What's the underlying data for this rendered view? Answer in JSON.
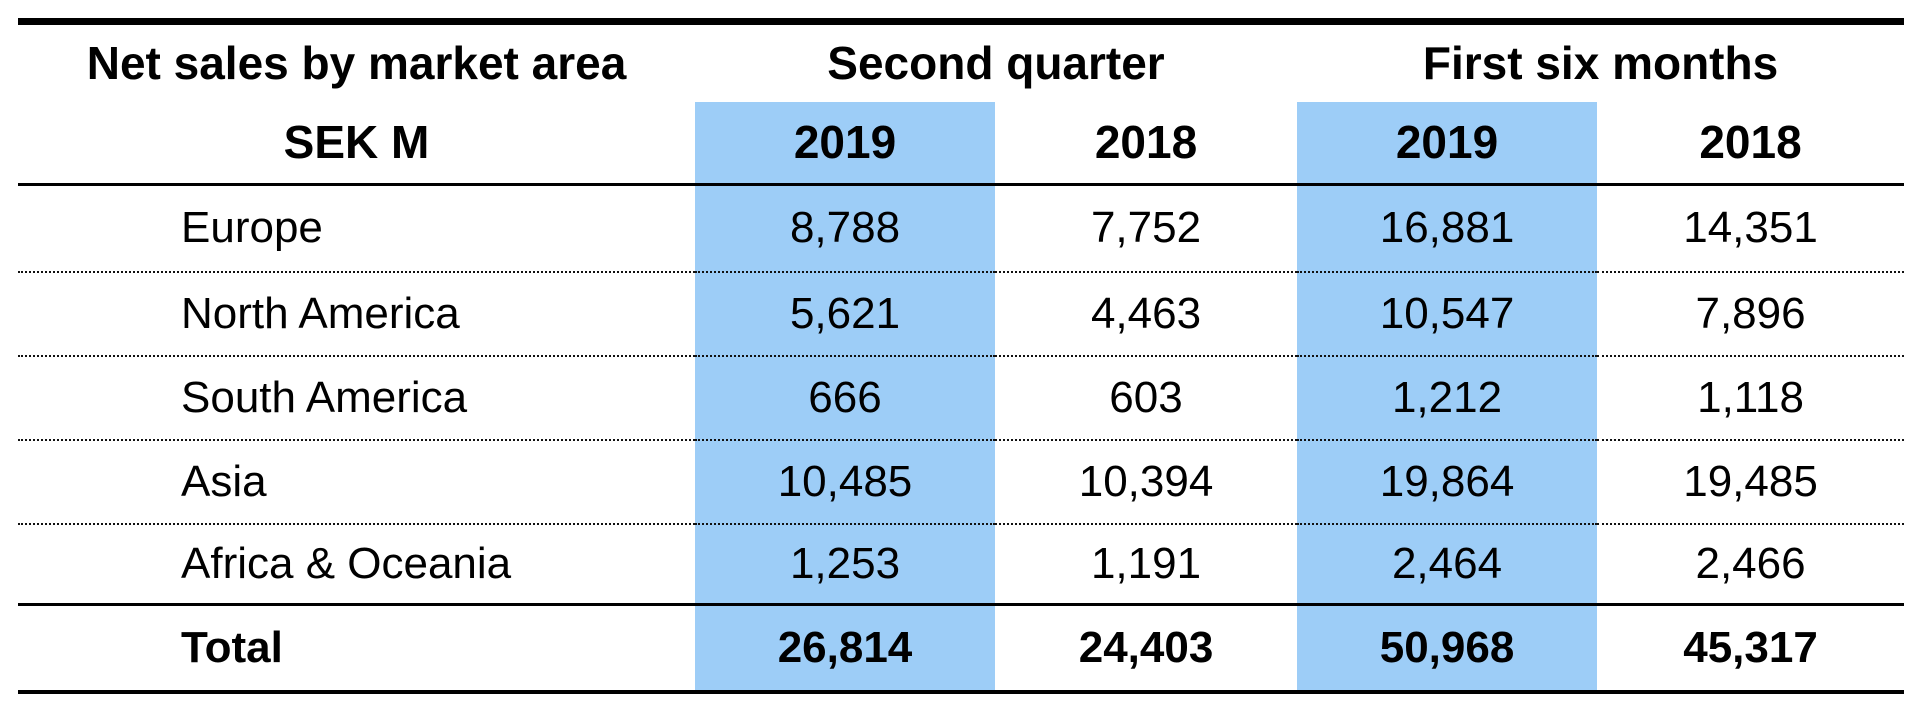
{
  "table": {
    "title": "Net sales by market area",
    "unit": "SEK M",
    "col_groups": [
      "Second quarter",
      "First six months"
    ],
    "year_headers": [
      "2019",
      "2018",
      "2019",
      "2018"
    ],
    "highlight_color": "#9dcdf7",
    "rows": [
      {
        "label": "Europe",
        "q2_2019": "8,788",
        "q2_2018": "7,752",
        "h1_2019": "16,881",
        "h1_2018": "14,351"
      },
      {
        "label": "North America",
        "q2_2019": "5,621",
        "q2_2018": "4,463",
        "h1_2019": "10,547",
        "h1_2018": "7,896"
      },
      {
        "label": "South America",
        "q2_2019": "666",
        "q2_2018": "603",
        "h1_2019": "1,212",
        "h1_2018": "1,118"
      },
      {
        "label": "Asia",
        "q2_2019": "10,485",
        "q2_2018": "10,394",
        "h1_2019": "19,864",
        "h1_2018": "19,485"
      },
      {
        "label": "Africa & Oceania",
        "q2_2019": "1,253",
        "q2_2018": "1,191",
        "h1_2019": "2,464",
        "h1_2018": "2,466"
      }
    ],
    "total_row": {
      "label": "Total",
      "q2_2019": "26,814",
      "q2_2018": "24,403",
      "h1_2019": "50,968",
      "h1_2018": "45,317"
    }
  }
}
